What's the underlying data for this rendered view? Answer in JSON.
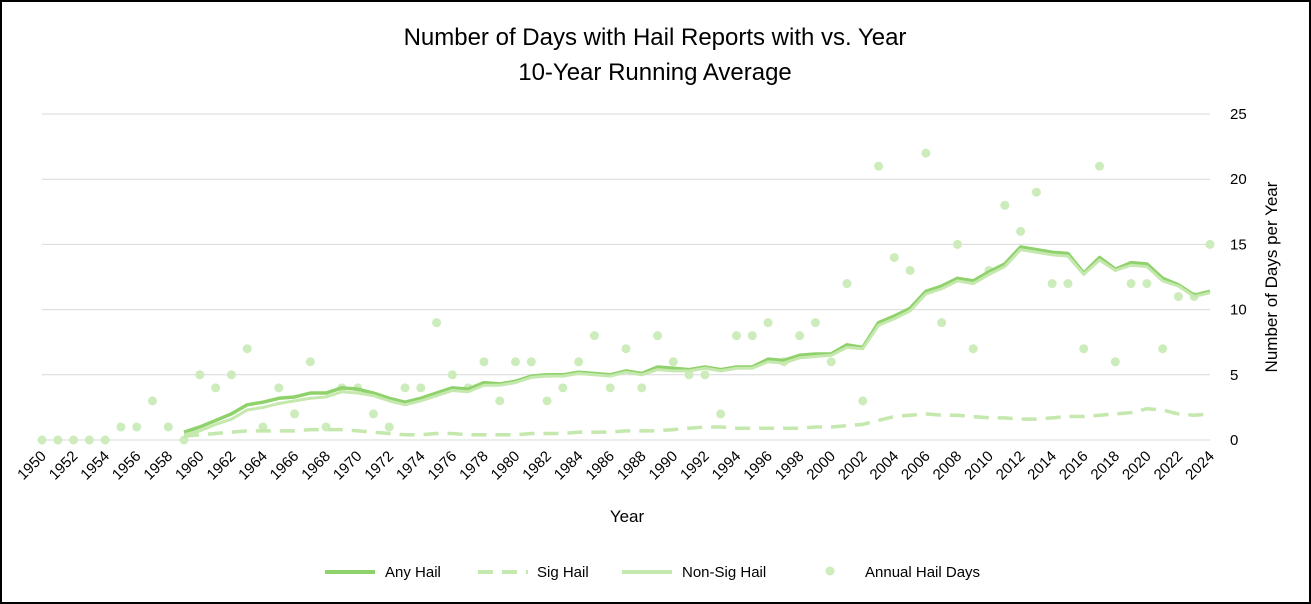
{
  "chart_data": {
    "type": "line",
    "title": "Number of Days with Hail Reports with vs. Year",
    "subtitle": "10-Year Running Average",
    "xlabel": "Year",
    "ylabel": "Number of Days per Year",
    "xlim": [
      1950,
      2024
    ],
    "ylim": [
      0,
      25
    ],
    "y_ticks": [
      0,
      5,
      10,
      15,
      20,
      25
    ],
    "x_tick_labels": [
      "1950",
      "1952",
      "1954",
      "1956",
      "1958",
      "1960",
      "1962",
      "1964",
      "1966",
      "1968",
      "1970",
      "1972",
      "1974",
      "1976",
      "1978",
      "1980",
      "1982",
      "1984",
      "1986",
      "1988",
      "1990",
      "1992",
      "1994",
      "1996",
      "1998",
      "2000",
      "2002",
      "2004",
      "2006",
      "2008",
      "2010",
      "2012",
      "2014",
      "2016",
      "2018",
      "2020",
      "2022",
      "2024"
    ],
    "y_axis_side": "right",
    "grid": "horizontal",
    "legend_position": "bottom",
    "colors": {
      "any_hail": "#8fd16a",
      "sig_hail": "#c4e8ad",
      "non_sig_hail": "#c4e8ad",
      "annual_points": "#cdecbb"
    },
    "series": [
      {
        "name": "Any Hail",
        "style": "solid-thick",
        "x": [
          1959,
          1960,
          1961,
          1962,
          1963,
          1964,
          1965,
          1966,
          1967,
          1968,
          1969,
          1970,
          1971,
          1972,
          1973,
          1974,
          1975,
          1976,
          1977,
          1978,
          1979,
          1980,
          1981,
          1982,
          1983,
          1984,
          1985,
          1986,
          1987,
          1988,
          1989,
          1990,
          1991,
          1992,
          1993,
          1994,
          1995,
          1996,
          1997,
          1998,
          1999,
          2000,
          2001,
          2002,
          2003,
          2004,
          2005,
          2006,
          2007,
          2008,
          2009,
          2010,
          2011,
          2012,
          2013,
          2014,
          2015,
          2016,
          2017,
          2018,
          2019,
          2020,
          2021,
          2022,
          2023,
          2024
        ],
        "values": [
          0.6,
          1.0,
          1.5,
          2.0,
          2.7,
          2.9,
          3.2,
          3.3,
          3.6,
          3.6,
          4.0,
          3.9,
          3.6,
          3.2,
          2.9,
          3.2,
          3.6,
          4.0,
          3.9,
          4.4,
          4.3,
          4.5,
          4.9,
          5.0,
          5.0,
          5.2,
          5.1,
          5.0,
          5.3,
          5.1,
          5.6,
          5.5,
          5.4,
          5.6,
          5.4,
          5.6,
          5.6,
          6.2,
          6.1,
          6.5,
          6.6,
          6.6,
          7.3,
          7.1,
          9.0,
          9.5,
          10.1,
          11.4,
          11.8,
          12.4,
          12.2,
          12.9,
          13.5,
          14.8,
          14.6,
          14.4,
          14.3,
          12.8,
          14.0,
          13.1,
          13.6,
          13.5,
          12.4,
          11.9,
          11.1,
          11.4
        ]
      },
      {
        "name": "Sig Hail",
        "style": "dashed",
        "x": [
          1959,
          1960,
          1961,
          1962,
          1963,
          1964,
          1965,
          1966,
          1967,
          1968,
          1969,
          1970,
          1971,
          1972,
          1973,
          1974,
          1975,
          1976,
          1977,
          1978,
          1979,
          1980,
          1981,
          1982,
          1983,
          1984,
          1985,
          1986,
          1987,
          1988,
          1989,
          1990,
          1991,
          1992,
          1993,
          1994,
          1995,
          1996,
          1997,
          1998,
          1999,
          2000,
          2001,
          2002,
          2003,
          2004,
          2005,
          2006,
          2007,
          2008,
          2009,
          2010,
          2011,
          2012,
          2013,
          2014,
          2015,
          2016,
          2017,
          2018,
          2019,
          2020,
          2021,
          2022,
          2023,
          2024
        ],
        "values": [
          0.3,
          0.4,
          0.5,
          0.6,
          0.7,
          0.7,
          0.7,
          0.7,
          0.8,
          0.8,
          0.8,
          0.7,
          0.6,
          0.5,
          0.4,
          0.4,
          0.5,
          0.5,
          0.4,
          0.4,
          0.4,
          0.4,
          0.5,
          0.5,
          0.5,
          0.6,
          0.6,
          0.6,
          0.7,
          0.7,
          0.7,
          0.8,
          0.9,
          1.0,
          1.0,
          0.9,
          0.9,
          0.9,
          0.9,
          0.9,
          1.0,
          1.0,
          1.1,
          1.2,
          1.5,
          1.8,
          1.9,
          2.0,
          1.9,
          1.9,
          1.8,
          1.7,
          1.7,
          1.6,
          1.6,
          1.7,
          1.8,
          1.8,
          1.9,
          2.0,
          2.1,
          2.4,
          2.3,
          2.0,
          1.9,
          2.0
        ]
      },
      {
        "name": "Non-Sig Hail",
        "style": "solid",
        "x": [
          1959,
          1960,
          1961,
          1962,
          1963,
          1964,
          1965,
          1966,
          1967,
          1968,
          1969,
          1970,
          1971,
          1972,
          1973,
          1974,
          1975,
          1976,
          1977,
          1978,
          1979,
          1980,
          1981,
          1982,
          1983,
          1984,
          1985,
          1986,
          1987,
          1988,
          1989,
          1990,
          1991,
          1992,
          1993,
          1994,
          1995,
          1996,
          1997,
          1998,
          1999,
          2000,
          2001,
          2002,
          2003,
          2004,
          2005,
          2006,
          2007,
          2008,
          2009,
          2010,
          2011,
          2012,
          2013,
          2014,
          2015,
          2016,
          2017,
          2018,
          2019,
          2020,
          2021,
          2022,
          2023,
          2024
        ],
        "values": [
          0.4,
          0.7,
          1.2,
          1.6,
          2.3,
          2.5,
          2.8,
          3.0,
          3.2,
          3.3,
          3.7,
          3.6,
          3.4,
          3.0,
          2.7,
          3.0,
          3.4,
          3.8,
          3.7,
          4.2,
          4.2,
          4.4,
          4.8,
          4.9,
          4.9,
          5.1,
          5.0,
          4.9,
          5.2,
          5.0,
          5.4,
          5.3,
          5.3,
          5.5,
          5.3,
          5.5,
          5.5,
          6.0,
          5.9,
          6.3,
          6.4,
          6.5,
          7.1,
          7.0,
          8.8,
          9.3,
          9.9,
          11.2,
          11.6,
          12.2,
          12.0,
          12.7,
          13.3,
          14.6,
          14.4,
          14.2,
          14.1,
          12.7,
          13.8,
          13.0,
          13.4,
          13.3,
          12.2,
          11.8,
          11.0,
          11.3
        ]
      }
    ],
    "scatter": {
      "name": "Annual Hail Days",
      "x": [
        1950,
        1951,
        1952,
        1953,
        1954,
        1955,
        1956,
        1957,
        1958,
        1959,
        1960,
        1961,
        1962,
        1963,
        1964,
        1965,
        1966,
        1967,
        1968,
        1969,
        1970,
        1971,
        1972,
        1973,
        1974,
        1975,
        1976,
        1977,
        1978,
        1979,
        1980,
        1981,
        1982,
        1983,
        1984,
        1985,
        1986,
        1987,
        1988,
        1989,
        1990,
        1991,
        1992,
        1993,
        1994,
        1995,
        1996,
        1997,
        1998,
        1999,
        2000,
        2001,
        2002,
        2003,
        2004,
        2005,
        2006,
        2007,
        2008,
        2009,
        2010,
        2011,
        2012,
        2013,
        2014,
        2015,
        2016,
        2017,
        2018,
        2019,
        2020,
        2021,
        2022,
        2023,
        2024
      ],
      "values": [
        0,
        0,
        0,
        0,
        0,
        1,
        1,
        3,
        1,
        0,
        5,
        4,
        5,
        7,
        1,
        4,
        2,
        6,
        1,
        4,
        4,
        2,
        1,
        4,
        4,
        9,
        5,
        4,
        6,
        3,
        6,
        6,
        3,
        4,
        6,
        8,
        4,
        7,
        4,
        8,
        6,
        5,
        5,
        2,
        8,
        8,
        9,
        6,
        8,
        9,
        6,
        12,
        3,
        21,
        14,
        13,
        22,
        9,
        15,
        7,
        13,
        18,
        16,
        19,
        12,
        12,
        7,
        21,
        6,
        12,
        12,
        7,
        11,
        11,
        15
      ]
    }
  }
}
